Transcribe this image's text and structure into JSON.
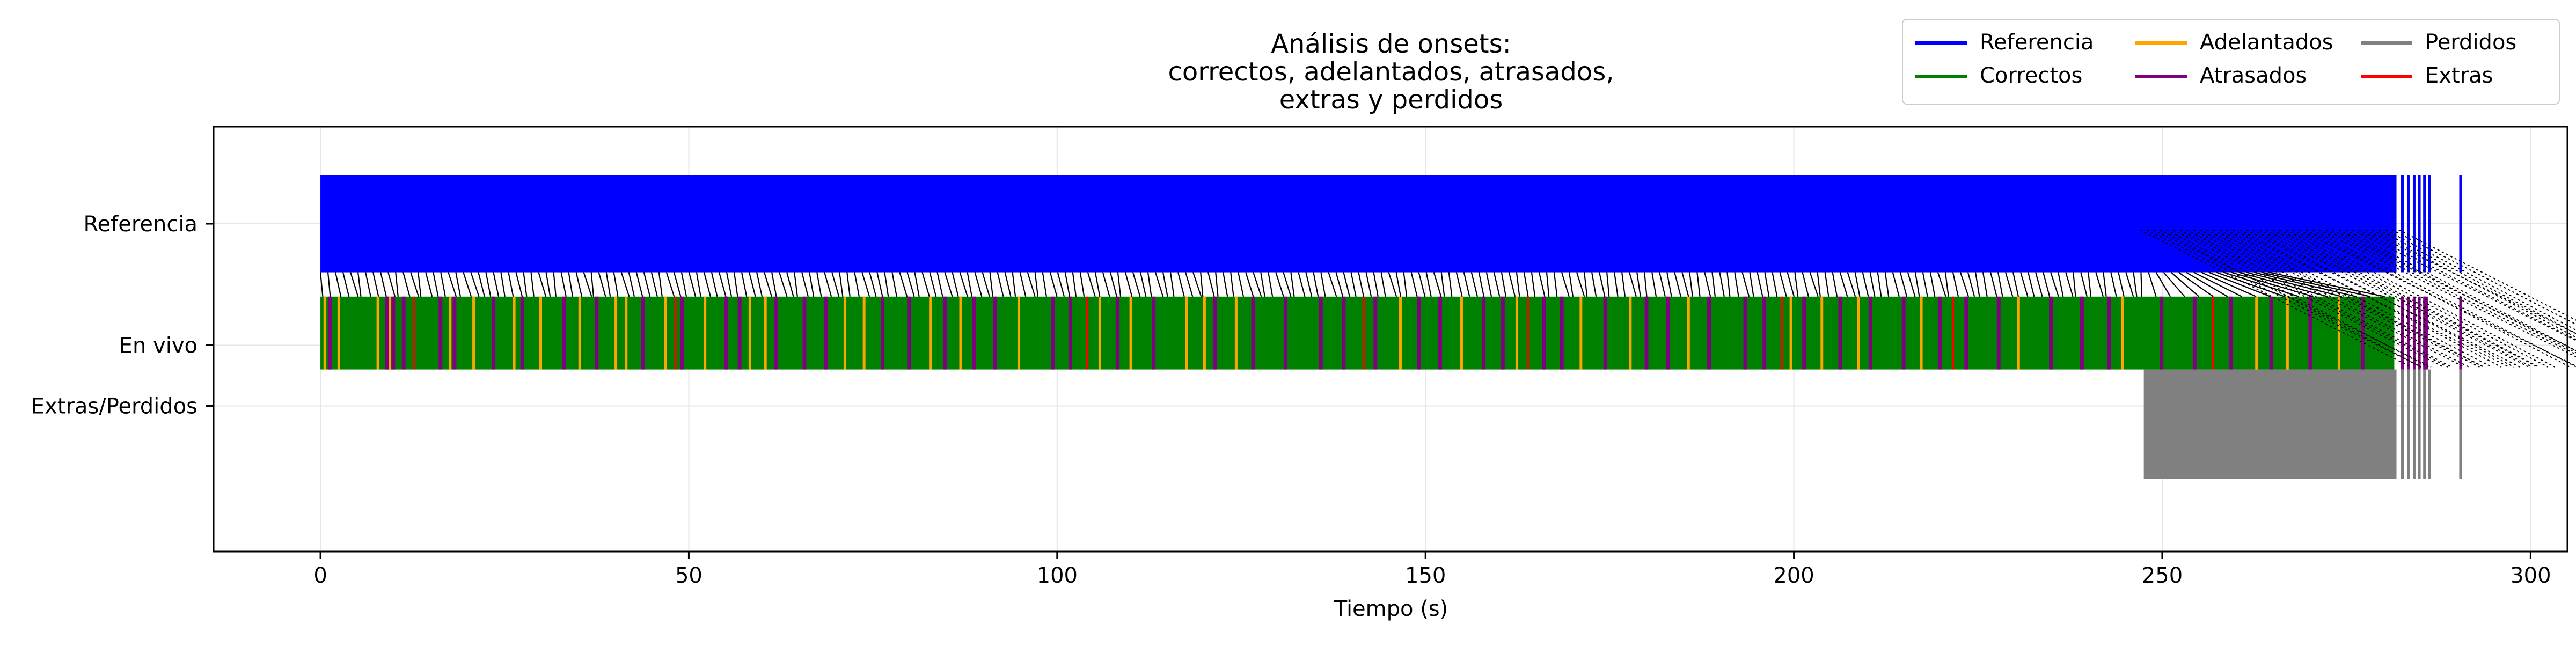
{
  "chart_data": {
    "type": "event-timeline",
    "title_lines": [
      "Análisis de onsets:",
      "correctos, adelantados, atrasados,",
      "extras y perdidos"
    ],
    "xlabel": "Tiempo (s)",
    "xlim": [
      -14.5,
      305
    ],
    "xticks": [
      0,
      50,
      100,
      150,
      200,
      250,
      300
    ],
    "grid": true,
    "rows": [
      {
        "label": "Referencia",
        "y": 2
      },
      {
        "label": "En vivo",
        "y": 1
      },
      {
        "label": "Extras/Perdidos",
        "y": 0.5
      }
    ],
    "ylim": [
      -0.7,
      2.8
    ],
    "legend": {
      "placement": "top-right",
      "ncol": 3,
      "entries": [
        {
          "label": "Referencia",
          "color": "#0000ff"
        },
        {
          "label": "Correctos",
          "color": "#008000"
        },
        {
          "label": "Adelantados",
          "color": "#ffa500"
        },
        {
          "label": "Atrasados",
          "color": "#800080"
        },
        {
          "label": "Perdidos",
          "color": "#808080"
        },
        {
          "label": "Extras",
          "color": "#ff0000"
        }
      ]
    },
    "colors": {
      "referencia": "#0000ff",
      "correctos": "#008000",
      "adelantados": "#ffa500",
      "atrasados": "#800080",
      "perdidos": "#808080",
      "extras": "#ff0000",
      "connector": "#000000"
    },
    "reference_onsets": {
      "dense_range_s": [
        0,
        281.8
      ],
      "extra_onsets_s": [
        282.6,
        283.4,
        284.2,
        284.9,
        285.6,
        286.3,
        290.5
      ],
      "y_range": [
        1.6,
        2.4
      ]
    },
    "live_onsets": {
      "range_s": [
        0,
        281.5
      ],
      "tail_onsets_s": [
        282.6,
        283.4,
        284.2,
        284.9,
        285.6,
        290.5
      ],
      "y_range": [
        0.8,
        1.4
      ],
      "adelantados_s": [
        0.6,
        2.5,
        7.8,
        9.4,
        17.6,
        20.8,
        26.3,
        29.9,
        35.2,
        40.1,
        41.5,
        46.8,
        52.2,
        58.3,
        60.4,
        71.2,
        73.8,
        82.8,
        86.9,
        94.8,
        105.8,
        110.0,
        117.6,
        120.0,
        124.3,
        146.6,
        154.9,
        162.4,
        171.1,
        177.8,
        185.7,
        199.6,
        203.8,
        208.8,
        217.3,
        230.5,
        244.6,
        262.8,
        267.0,
        274.0
      ],
      "atrasados_s": [
        1.3,
        9.0,
        9.9,
        11.3,
        16.3,
        18.2,
        23.5,
        27.4,
        33.1,
        37.5,
        43.8,
        49.1,
        55.1,
        56.9,
        61.8,
        65.7,
        68.6,
        76.3,
        79.9,
        84.8,
        88.7,
        91.6,
        99.4,
        101.8,
        108.2,
        113.1,
        121.4,
        126.6,
        131.0,
        135.8,
        138.9,
        143.2,
        149.1,
        152.0,
        157.9,
        160.5,
        166.1,
        168.5,
        174.4,
        180.0,
        182.9,
        188.5,
        193.4,
        196.0,
        201.4,
        206.3,
        210.4,
        214.9,
        219.8,
        223.4,
        227.8,
        234.9,
        239.1,
        242.8,
        249.9,
        254.4,
        259.3,
        264.8,
        270.1,
        277.2,
        285.8
      ],
      "extras_s": [
        12.7,
        48.2,
        104.1,
        141.6,
        163.9,
        198.4,
        221.6,
        256.9
      ]
    },
    "perdidos": {
      "dense_range_s": [
        247.5,
        281.8
      ],
      "extra_onsets_s": [
        282.6,
        283.4,
        284.2,
        284.9,
        285.6,
        286.3,
        290.5
      ],
      "y_range": [
        -0.1,
        0.8
      ]
    }
  }
}
